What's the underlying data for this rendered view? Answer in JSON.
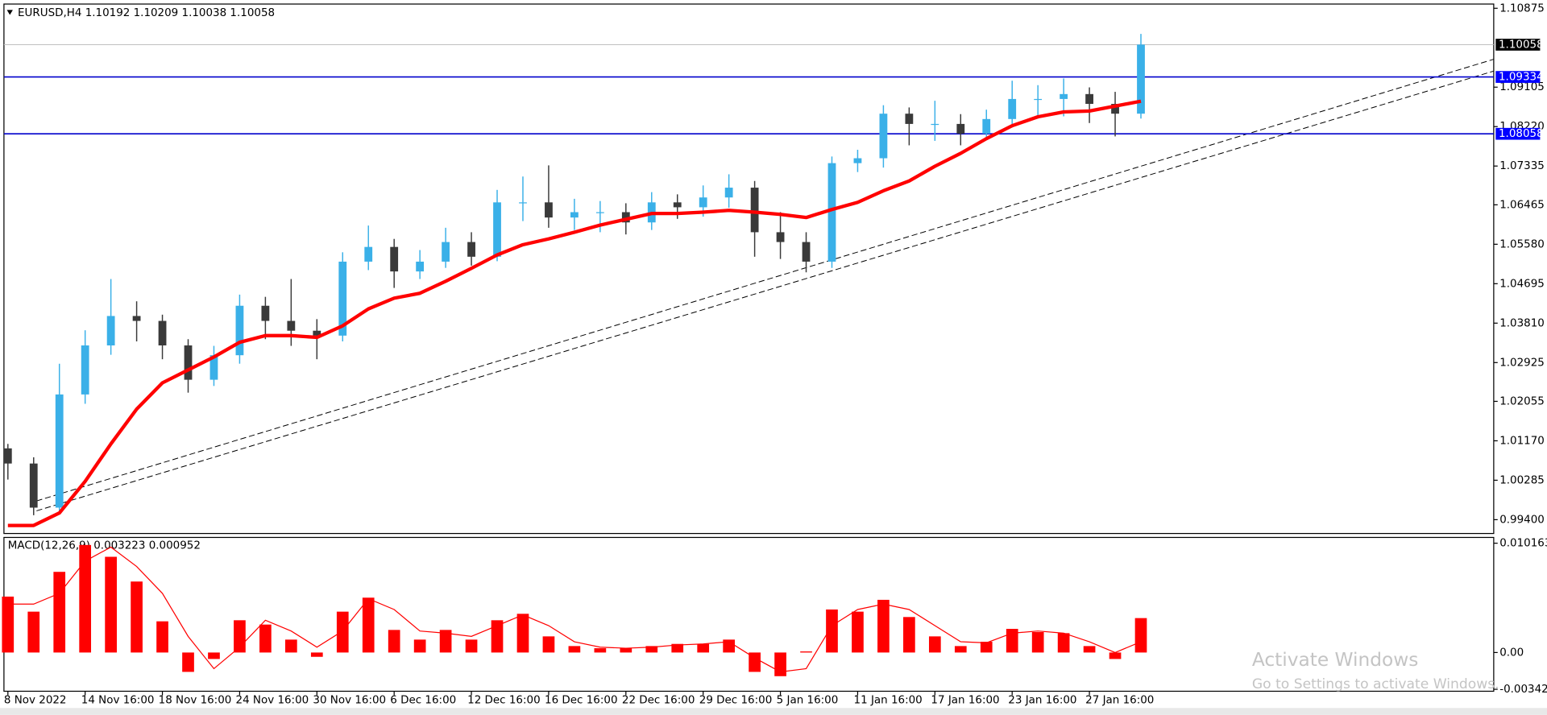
{
  "chart_data": [
    {
      "type": "candlestick",
      "title": "EURUSD,H4  1.10192 1.10209 1.10038 1.10058",
      "categories": [
        "8 Nov 2022",
        null,
        null,
        "14 Nov 16:00",
        null,
        null,
        "18 Nov 16:00",
        null,
        null,
        "24 Nov 16:00",
        null,
        null,
        "30 Nov 16:00",
        null,
        null,
        "6 Dec 16:00",
        null,
        null,
        "12 Dec 16:00",
        null,
        null,
        "16 Dec 16:00",
        null,
        null,
        "22 Dec 16:00",
        null,
        null,
        "29 Dec 16:00",
        null,
        null,
        "5 Jan 16:00",
        null,
        null,
        "11 Jan 16:00",
        null,
        null,
        "17 Jan 16:00",
        null,
        null,
        "23 Jan 16:00",
        null,
        null,
        "27 Jan 16:00",
        null,
        null
      ],
      "open": [
        1.01,
        1.0066,
        0.9967,
        1.0221,
        1.0331,
        1.0397,
        1.0386,
        1.0331,
        1.0254,
        1.0309,
        1.042,
        1.0386,
        1.0364,
        1.0353,
        1.0519,
        1.0552,
        1.0497,
        1.0519,
        1.0563,
        1.053,
        1.0652,
        1.0652,
        1.0618,
        1.063,
        1.063,
        1.0607,
        1.0652,
        1.0641,
        1.0663,
        1.0685,
        1.0585,
        1.0563,
        1.0519,
        1.074,
        1.0751,
        1.0851,
        1.0828,
        1.0828,
        1.0806,
        1.0839,
        1.0884,
        1.0884,
        1.0895,
        1.0873,
        1.0851
      ],
      "high": [
        1.011,
        1.008,
        1.029,
        1.0365,
        1.048,
        1.043,
        1.04,
        1.0345,
        1.033,
        1.0445,
        1.044,
        1.048,
        1.039,
        1.054,
        1.06,
        1.057,
        1.0545,
        1.0595,
        1.0585,
        1.068,
        1.071,
        1.0735,
        1.066,
        1.0655,
        1.065,
        1.0675,
        1.067,
        1.069,
        1.0715,
        1.07,
        1.063,
        1.0585,
        1.0755,
        1.077,
        1.087,
        1.0865,
        1.088,
        1.085,
        1.086,
        1.0925,
        1.0915,
        1.093,
        1.091,
        1.09,
        1.103
      ],
      "low": [
        1.003,
        0.995,
        0.996,
        1.02,
        1.031,
        1.034,
        1.03,
        1.0225,
        1.024,
        1.029,
        1.0345,
        1.033,
        1.03,
        1.034,
        1.05,
        1.046,
        1.048,
        1.0505,
        1.051,
        1.052,
        1.061,
        1.0595,
        1.059,
        1.0585,
        1.058,
        1.059,
        1.0615,
        1.062,
        1.064,
        1.053,
        1.0525,
        1.0495,
        1.0505,
        1.072,
        1.073,
        1.078,
        1.079,
        1.078,
        1.0795,
        1.082,
        1.084,
        1.0845,
        1.083,
        1.08,
        1.084
      ],
      "close": [
        1.0066,
        0.9967,
        1.0221,
        1.0331,
        1.0397,
        1.0386,
        1.0331,
        1.0254,
        1.0309,
        1.042,
        1.0386,
        1.0364,
        1.0353,
        1.0519,
        1.0552,
        1.0497,
        1.0519,
        1.0563,
        1.053,
        1.0652,
        1.0652,
        1.0618,
        1.063,
        1.063,
        1.0607,
        1.0652,
        1.0641,
        1.0663,
        1.0685,
        1.0585,
        1.0563,
        1.0519,
        1.074,
        1.0751,
        1.0851,
        1.0828,
        1.0828,
        1.0806,
        1.0839,
        1.0884,
        1.0884,
        1.0895,
        1.0873,
        1.0851,
        1.1006
      ],
      "up_color": "#3ab0e8",
      "down_color": "#3a3a3a",
      "moving_average": {
        "color": "#ff0000",
        "values": [
          0.9927,
          0.9927,
          0.9955,
          1.0026,
          1.011,
          1.0188,
          1.0247,
          1.0276,
          1.0305,
          1.0338,
          1.0353,
          1.0353,
          1.0349,
          1.0375,
          1.0413,
          1.0437,
          1.0448,
          1.0475,
          1.0504,
          1.0534,
          1.0557,
          1.057,
          1.0585,
          1.0601,
          1.0614,
          1.0627,
          1.0627,
          1.063,
          1.0634,
          1.063,
          1.0625,
          1.0618,
          1.0636,
          1.0652,
          1.0678,
          1.07,
          1.0733,
          1.0762,
          1.0795,
          1.0824,
          1.0844,
          1.0855,
          1.0857,
          1.0868,
          1.0879
        ]
      },
      "levels": [
        {
          "value": 1.10058,
          "color": "#c0c0c0",
          "label_color": "#000000"
        },
        {
          "value": 1.09334,
          "color": "#0000cc",
          "label_color": "#0000ff"
        },
        {
          "value": 1.08058,
          "color": "#0000cc",
          "label_color": "#0000ff"
        }
      ],
      "ylim": [
        0.9909,
        1.1097
      ],
      "yticks": [
        1.10875,
        1.09105,
        {
          "value": 1.0822,
          "label": "1.08220"
        },
        1.07335,
        1.06465,
        {
          "value": 1.0558,
          "label": "1.05580"
        },
        1.04695,
        {
          "value": 1.0381,
          "label": "1.03810"
        },
        1.02925,
        1.02055,
        {
          "value": 1.0117,
          "label": "1.01170"
        },
        1.00285,
        {
          "value": 0.994,
          "label": "0.99400"
        }
      ]
    },
    {
      "type": "macd",
      "title": "MACD(12,26,9) 0.003223 0.000952",
      "color": "#ff0000",
      "values": [
        0.0052,
        0.0038,
        0.0075,
        0.01,
        0.0089,
        0.0066,
        0.0029,
        -0.0018,
        -0.0006,
        0.003,
        0.0026,
        0.0012,
        -0.0004,
        0.0038,
        0.0051,
        0.0021,
        0.0012,
        0.0021,
        0.0012,
        0.003,
        0.0036,
        0.0015,
        0.0006,
        0.0004,
        0.0004,
        0.0006,
        0.0008,
        0.0008,
        0.0012,
        -0.0018,
        -0.0022,
        0.0001,
        0.004,
        0.0038,
        0.0049,
        0.0033,
        0.0015,
        0.0006,
        0.001,
        0.0022,
        0.0019,
        0.0018,
        0.0006,
        -0.0006,
        0.0032
      ],
      "signal": [
        0.0045,
        0.0045,
        0.0055,
        0.0085,
        0.0098,
        0.008,
        0.0055,
        0.0015,
        -0.0015,
        0.0005,
        0.003,
        0.002,
        0.0005,
        0.002,
        0.005,
        0.004,
        0.002,
        0.0018,
        0.0015,
        0.0025,
        0.0035,
        0.0025,
        0.001,
        0.0005,
        0.0004,
        0.0005,
        0.0007,
        0.0008,
        0.001,
        -0.0005,
        -0.0018,
        -0.0015,
        0.0025,
        0.004,
        0.0045,
        0.004,
        0.0025,
        0.001,
        0.0009,
        0.0018,
        0.002,
        0.0018,
        0.001,
        0.0,
        0.001
      ],
      "ylim": [
        -0.0036,
        0.0107
      ],
      "yticks": [
        0.010163,
        {
          "value": 0,
          "label": "0.00"
        },
        -0.00342
      ]
    }
  ],
  "watermark": {
    "line1": "Activate Windows",
    "line2": "Go to Settings to activate Windows."
  }
}
